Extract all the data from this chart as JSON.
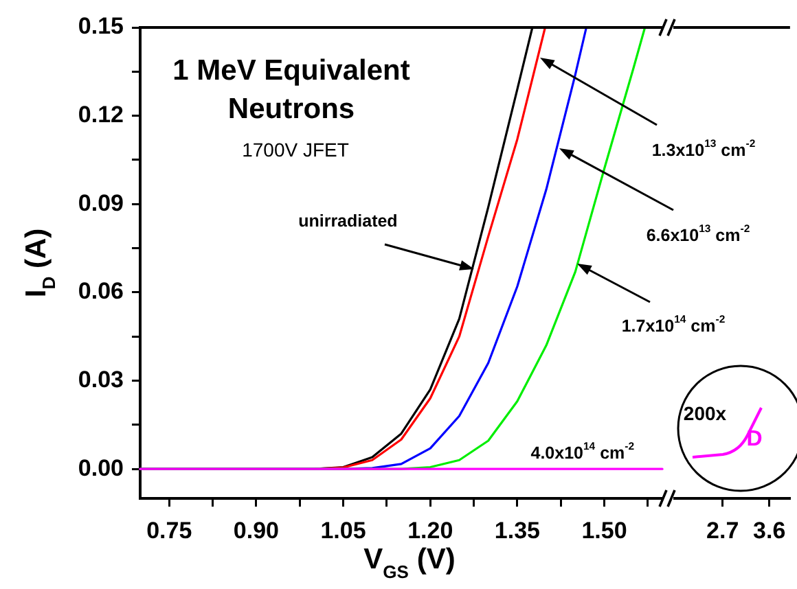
{
  "chart_data": [
    {
      "type": "line",
      "title": "1 MeV Equivalent Neutrons",
      "subtitle": "1700V JFET",
      "xlabel": "V$_{GS}$ (V)",
      "ylabel": "I$_{D}$ (A)",
      "xlim": [
        0.7,
        1.6
      ],
      "xticks": [
        0.75,
        {
          "value": 0.825,
          "label": null
        },
        {
          "value": 0.9,
          "label": "0.90"
        },
        {
          "value": 0.975,
          "label": null
        },
        1.05,
        {
          "value": 1.125,
          "label": null
        },
        {
          "value": 1.2,
          "label": "1.20"
        },
        {
          "value": 1.275,
          "label": null
        },
        1.35,
        {
          "value": 1.425,
          "label": null
        },
        {
          "value": 1.5,
          "label": "1.50"
        },
        {
          "value": 1.575,
          "label": null
        }
      ],
      "ylim": [
        -0.01,
        0.15
      ],
      "yticks": [
        {
          "value": 0,
          "label": "0.00"
        },
        {
          "value": 0.015,
          "label": null
        },
        0.03,
        {
          "value": 0.045,
          "label": null
        },
        0.06,
        {
          "value": 0.075,
          "label": null
        },
        0.09,
        {
          "value": 0.105,
          "label": null
        },
        0.12,
        {
          "value": 0.135,
          "label": null
        },
        0.15
      ],
      "grid": false,
      "legend": false,
      "marker": "none",
      "line_style": "solid",
      "annotations": [
        {
          "text": "unirradiated",
          "x": 1.276,
          "y": 0.068
        },
        "1.3x10$^{13}$ cm$^{-2}$",
        "6.6x10$^{13}$ cm$^{-2}$",
        "1.7x10$^{14}$ cm$^{-2}$",
        {
          "text": "4.0x10$^{14}$ cm$^{-2}$",
          "x": 1.46,
          "y": 0
        }
      ],
      "series": [
        {
          "color": "#000000",
          "x": [
            0.7,
            1.0,
            1.05,
            1.1,
            1.15,
            1.2,
            1.25,
            1.3,
            1.35,
            1.376
          ],
          "values": [
            0,
            0,
            0.0006,
            0.004,
            0.012,
            0.027,
            0.051,
            0.089,
            0.129,
            0.15
          ]
        },
        {
          "color": "#ff0000",
          "x": [
            0.7,
            1.0,
            1.05,
            1.1,
            1.15,
            1.2,
            1.25,
            1.3,
            1.35,
            1.398
          ],
          "values": [
            0,
            0,
            0.0005,
            0.003,
            0.01,
            0.024,
            0.045,
            0.079,
            0.112,
            0.15
          ]
        },
        {
          "color": "#0000ff",
          "x": [
            0.7,
            1.05,
            1.1,
            1.15,
            1.2,
            1.25,
            1.3,
            1.35,
            1.4,
            1.45,
            1.469
          ],
          "values": [
            0,
            0,
            0.0003,
            0.0017,
            0.007,
            0.018,
            0.036,
            0.062,
            0.095,
            0.134,
            0.15
          ]
        },
        {
          "color": "#00ee00",
          "x": [
            0.7,
            1.15,
            1.2,
            1.25,
            1.3,
            1.35,
            1.4,
            1.45,
            1.5,
            1.55,
            1.57
          ],
          "values": [
            0,
            0,
            0.0006,
            0.003,
            0.0096,
            0.023,
            0.042,
            0.067,
            0.102,
            0.136,
            0.15
          ]
        },
        {
          "color": "#ff00ff",
          "x": [
            0.7,
            1.6
          ],
          "values": [
            0,
            0
          ]
        }
      ]
    },
    {
      "type": "line",
      "xlim": [
        1.75,
        4.0
      ],
      "xticks": [
        2.7,
        3.6
      ],
      "ylim": [
        -0.01,
        0.15
      ],
      "tick_labels": "x",
      "annotations": [
        "200x",
        "D"
      ]
    }
  ]
}
